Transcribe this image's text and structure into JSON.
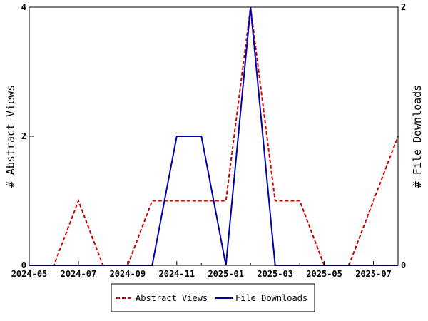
{
  "chart_data": {
    "type": "line",
    "x": [
      "2024-05",
      "2024-06",
      "2024-07",
      "2024-08",
      "2024-09",
      "2024-10",
      "2024-11",
      "2024-12",
      "2025-01",
      "2025-02",
      "2025-03",
      "2025-04",
      "2025-05",
      "2025-06",
      "2025-07",
      "2025-08"
    ],
    "x_tick_labels": [
      "2024-05",
      "2024-07",
      "2024-09",
      "2024-11",
      "2025-01",
      "2025-03",
      "2025-05",
      "2025-07"
    ],
    "y_left": {
      "label": "# Abstract Views",
      "ylim": [
        0,
        4
      ],
      "ticks": [
        "0",
        "2",
        "4"
      ]
    },
    "y_right": {
      "label": "# File Downloads",
      "ylim": [
        0,
        2
      ],
      "ticks": [
        "0",
        "2"
      ]
    },
    "series": [
      {
        "name": "Abstract Views",
        "axis": "left",
        "color": "#cc0000",
        "style": "dashed",
        "values": [
          0,
          0,
          1,
          0,
          0,
          1,
          1,
          1,
          1,
          4,
          1,
          1,
          0,
          0,
          1,
          2
        ]
      },
      {
        "name": "File Downloads",
        "axis": "right",
        "color": "#0000aa",
        "style": "solid",
        "values": [
          0,
          0,
          0,
          0,
          0,
          0,
          1,
          1,
          0,
          2,
          0,
          0,
          0,
          0,
          0,
          0
        ]
      }
    ],
    "legend": {
      "position": "bottom",
      "items": [
        "Abstract Views",
        "File Downloads"
      ]
    },
    "grid": false
  }
}
